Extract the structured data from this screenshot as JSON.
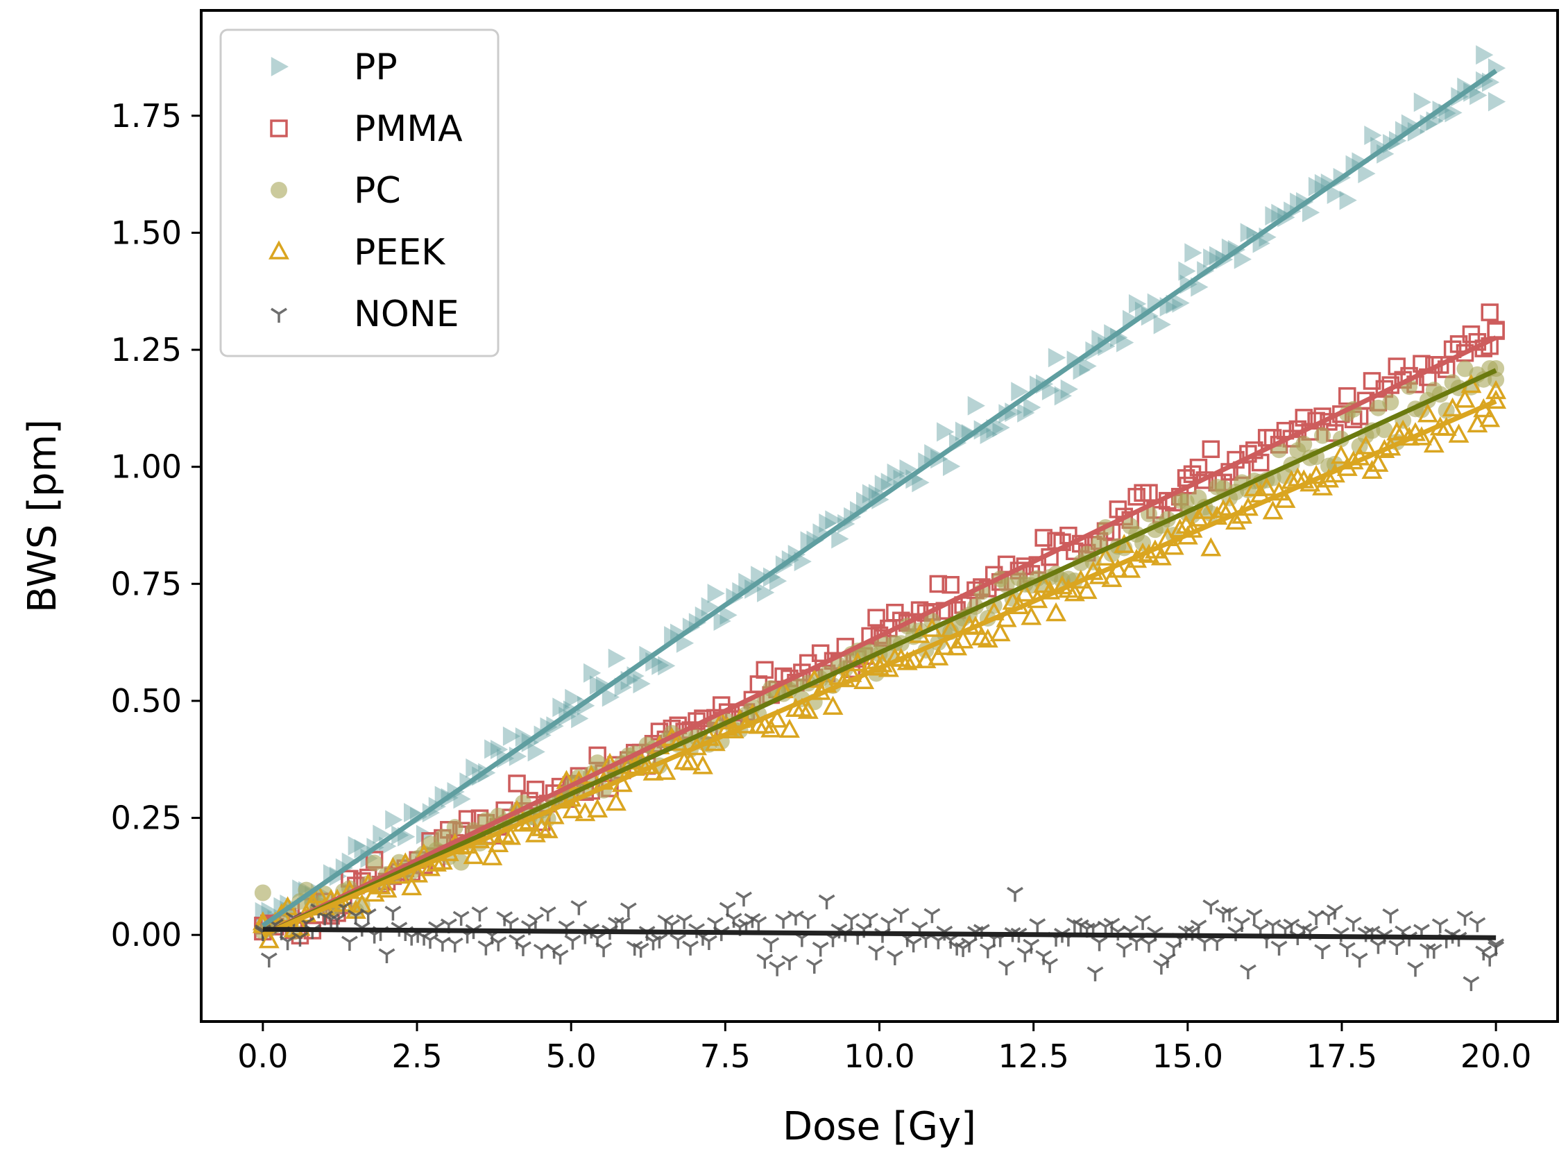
{
  "chart_data": {
    "type": "scatter",
    "title": "",
    "xlabel": "Dose [Gy]",
    "ylabel": "BWS [pm]",
    "xlim": [
      -1.0,
      21.0
    ],
    "ylim": [
      -0.185,
      1.975
    ],
    "xticks": [
      0.0,
      2.5,
      5.0,
      7.5,
      10.0,
      12.5,
      15.0,
      17.5,
      20.0
    ],
    "xtick_labels": [
      "0.0",
      "2.5",
      "5.0",
      "7.5",
      "10.0",
      "12.5",
      "15.0",
      "17.5",
      "20.0"
    ],
    "yticks": [
      0.0,
      0.25,
      0.5,
      0.75,
      1.0,
      1.25,
      1.5,
      1.75
    ],
    "ytick_labels": [
      "0.00",
      "0.25",
      "0.50",
      "0.75",
      "1.00",
      "1.25",
      "1.50",
      "1.75"
    ],
    "grid": false,
    "legend_position": "top-left",
    "n_points_per_series": 200,
    "x_range": [
      0.0,
      20.0
    ],
    "series": [
      {
        "name": "PP",
        "marker": "triangle-right",
        "color": "#5f9ea0",
        "fit_color": "#5f9ea0",
        "fit": {
          "intercept": 0.02,
          "slope": 0.0913
        },
        "noise": 0.022,
        "sample_points": [
          [
            0.0,
            0.02
          ],
          [
            5.0,
            0.48
          ],
          [
            10.0,
            0.93
          ],
          [
            15.0,
            1.39
          ],
          [
            19.8,
            1.88
          ],
          [
            20.0,
            1.78
          ]
        ]
      },
      {
        "name": "PMMA",
        "marker": "square-open",
        "color": "#cd5c5c",
        "fit_color": "#cd5c5c",
        "fit": {
          "intercept": 0.0,
          "slope": 0.0638
        },
        "noise": 0.022,
        "sample_points": [
          [
            0.0,
            0.02
          ],
          [
            5.0,
            0.32
          ],
          [
            10.0,
            0.64
          ],
          [
            15.0,
            0.96
          ],
          [
            19.9,
            1.33
          ],
          [
            20.0,
            1.29
          ]
        ]
      },
      {
        "name": "PC",
        "marker": "circle",
        "color": "#a9a65a",
        "fit_color": "#6b7a0f",
        "fit": {
          "intercept": 0.0,
          "slope": 0.0603
        },
        "noise": 0.022,
        "sample_points": [
          [
            0.0,
            0.09
          ],
          [
            5.0,
            0.3
          ],
          [
            10.0,
            0.6
          ],
          [
            15.0,
            0.9
          ],
          [
            20.0,
            1.21
          ]
        ]
      },
      {
        "name": "PEEK",
        "marker": "triangle-open",
        "color": "#daa520",
        "fit_color": "#daa520",
        "fit": {
          "intercept": 0.0,
          "slope": 0.057
        },
        "noise": 0.022,
        "sample_points": [
          [
            0.0,
            0.02
          ],
          [
            5.0,
            0.29
          ],
          [
            10.0,
            0.57
          ],
          [
            15.0,
            0.85
          ],
          [
            20.0,
            1.14
          ]
        ]
      },
      {
        "name": "NONE",
        "marker": "tri-down",
        "color": "#555555",
        "fit_color": "#222222",
        "fit": {
          "intercept": 0.012,
          "slope": -0.0009
        },
        "noise": 0.03,
        "sample_points": [
          [
            0.0,
            0.01
          ],
          [
            7.8,
            0.08
          ],
          [
            12.2,
            0.09
          ],
          [
            13.5,
            -0.08
          ],
          [
            20.0,
            -0.02
          ]
        ]
      }
    ]
  }
}
